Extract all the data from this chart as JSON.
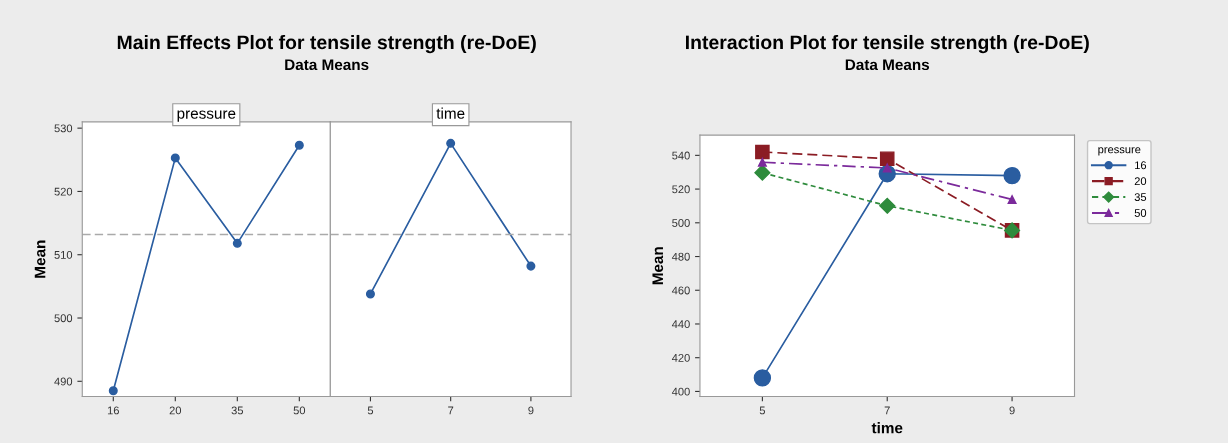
{
  "chart_data": [
    {
      "type": "line",
      "title": "Main Effects Plot for tensile strength (re-DoE)",
      "subtitle": "Data Means",
      "ylabel": "Mean",
      "annotations": [
        "pressure"
      ],
      "categories": [
        "16",
        "20",
        "35",
        "50"
      ],
      "series": [
        {
          "color": "#2a5da0",
          "values": [
            488.5,
            525.3,
            511.8,
            527.3
          ]
        }
      ],
      "ylim": [
        487.6,
        531
      ],
      "yticks": [
        490,
        500,
        510,
        520,
        530
      ],
      "marker": "circle",
      "line_style": "solid",
      "ref_lines": [
        {
          "axis": "y",
          "value": 513.2,
          "color": "#aaaaaa",
          "line_style": "dashed"
        }
      ],
      "grid": false
    },
    {
      "type": "line",
      "annotations": [
        "time"
      ],
      "categories": [
        "5",
        "7",
        "9"
      ],
      "series": [
        {
          "color": "#2a5da0",
          "values": [
            503.8,
            527.6,
            508.2
          ]
        }
      ],
      "ylim": [
        487.6,
        531
      ],
      "yticks": [
        490,
        500,
        510,
        520,
        530
      ],
      "tick_labels": "x",
      "marker": "circle",
      "line_style": "solid",
      "ref_lines": [
        {
          "axis": "y",
          "value": 513.2,
          "color": "#aaaaaa",
          "line_style": "dashed"
        }
      ],
      "grid": false
    },
    {
      "type": "line",
      "title": "Interaction Plot for tensile strength (re-DoE)",
      "subtitle": "Data Means",
      "xlabel": "time",
      "ylabel": "Mean",
      "legend_title": "pressure",
      "categories": [
        "5",
        "7",
        "9"
      ],
      "series": [
        {
          "name": "16",
          "color": "#2a5da0",
          "values": [
            408,
            529.1,
            528
          ],
          "marker": "circle",
          "line_style": "solid"
        },
        {
          "name": "20",
          "color": "#8b1c24",
          "values": [
            542,
            538,
            495.5
          ],
          "marker": "square",
          "line_style": "dashed"
        },
        {
          "name": "35",
          "color": "#2e8b3c",
          "values": [
            529.7,
            510.1,
            495.5
          ],
          "marker": "diamond",
          "line_style": "dotted"
        },
        {
          "name": "50",
          "color": "#7b2a9b",
          "values": [
            535.9,
            532.5,
            513.8
          ],
          "marker": "triangle",
          "line_style": "dashdot"
        }
      ],
      "ylim": [
        397,
        552
      ],
      "yticks": [
        400,
        420,
        440,
        460,
        480,
        500,
        520,
        540
      ],
      "legend": "right",
      "grid": false
    }
  ]
}
